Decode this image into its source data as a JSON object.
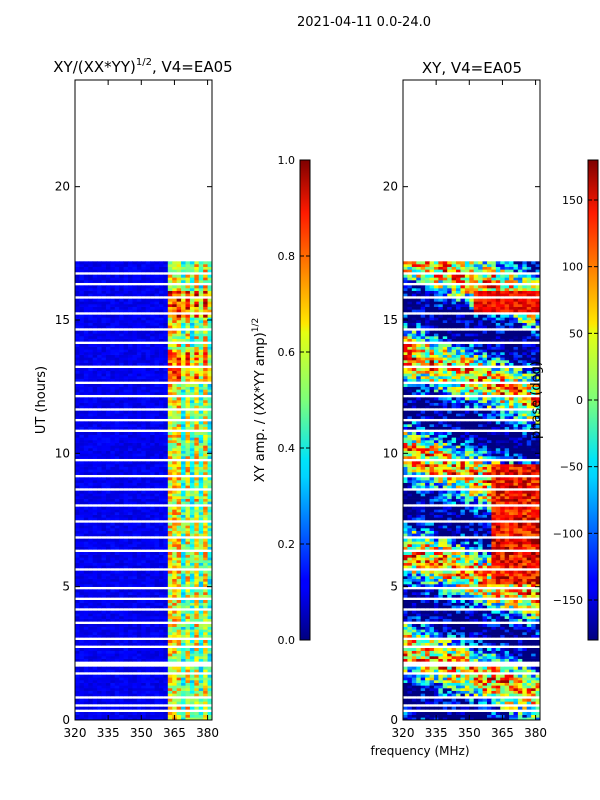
{
  "figure_title": "2021-04-11 0.0-24.0",
  "shared_xlabel": "frequency (MHz)",
  "chart_data": [
    {
      "type": "heatmap",
      "title": "XY/(XX*YY)^{1/2}, V4=EA05",
      "title_main": "XY/(XX*YY)",
      "title_exp": "1/2",
      "title_tail": ", V4=EA05",
      "xlabel": "frequency (MHz)",
      "ylabel": "UT (hours)",
      "xlim": [
        320,
        382
      ],
      "ylim": [
        0,
        24
      ],
      "xticks": [
        320,
        335,
        350,
        365,
        380
      ],
      "yticks": [
        0,
        5,
        10,
        15,
        20
      ],
      "data_extent_hours": [
        0,
        17.2
      ],
      "colorbar": {
        "label": "XY amp. / (XX*YY amp)^{1/2}",
        "label_main": "XY amp. / (XX*YY amp)",
        "label_exp": "1/2",
        "range": [
          0.0,
          1.0
        ],
        "ticks": [
          "0.0",
          "0.2",
          "0.4",
          "0.6",
          "0.8",
          "1.0"
        ],
        "tick_values": [
          0.0,
          0.2,
          0.4,
          0.6,
          0.8,
          1.0
        ],
        "colormap": "jet"
      },
      "gap_hours": [
        0.3,
        0.5,
        0.75,
        1.25,
        1.75,
        2.0,
        2.1,
        2.75,
        3.0,
        3.6,
        4.1,
        4.5,
        4.9,
        5.6,
        6.3,
        6.8,
        7.4,
        8.0,
        8.6,
        9.1,
        9.7,
        10.8,
        11.2,
        11.6,
        12.1,
        12.6,
        13.2,
        14.1,
        14.6,
        15.2,
        15.8,
        16.3,
        16.7
      ],
      "bright_channel_mhz": [
        364,
        367,
        371,
        375,
        379
      ]
    },
    {
      "type": "heatmap",
      "title": "XY, V4=EA05",
      "xlabel": "frequency (MHz)",
      "ylabel": "",
      "xlim": [
        320,
        382
      ],
      "ylim": [
        0,
        24
      ],
      "xticks": [
        320,
        335,
        350,
        365,
        380
      ],
      "yticks": [
        0,
        5,
        10,
        15,
        20
      ],
      "data_extent_hours": [
        0,
        17.2
      ],
      "colorbar": {
        "label": "phase (deg)",
        "range": [
          -180,
          180
        ],
        "ticks": [
          "−150",
          "−100",
          "−50",
          "0",
          "50",
          "100",
          "150"
        ],
        "tick_values": [
          -150,
          -100,
          -50,
          0,
          50,
          100,
          150
        ],
        "colormap": "jet"
      },
      "gap_hours": [
        0.3,
        0.5,
        0.75,
        1.25,
        1.75,
        2.0,
        2.1,
        2.75,
        3.0,
        3.6,
        4.1,
        4.5,
        4.9,
        5.6,
        6.3,
        6.8,
        7.4,
        8.0,
        8.6,
        9.1,
        9.7,
        10.8,
        11.2,
        11.6,
        12.1,
        12.6,
        13.2,
        14.1,
        14.6,
        15.2,
        15.8,
        16.3,
        16.7
      ]
    }
  ]
}
